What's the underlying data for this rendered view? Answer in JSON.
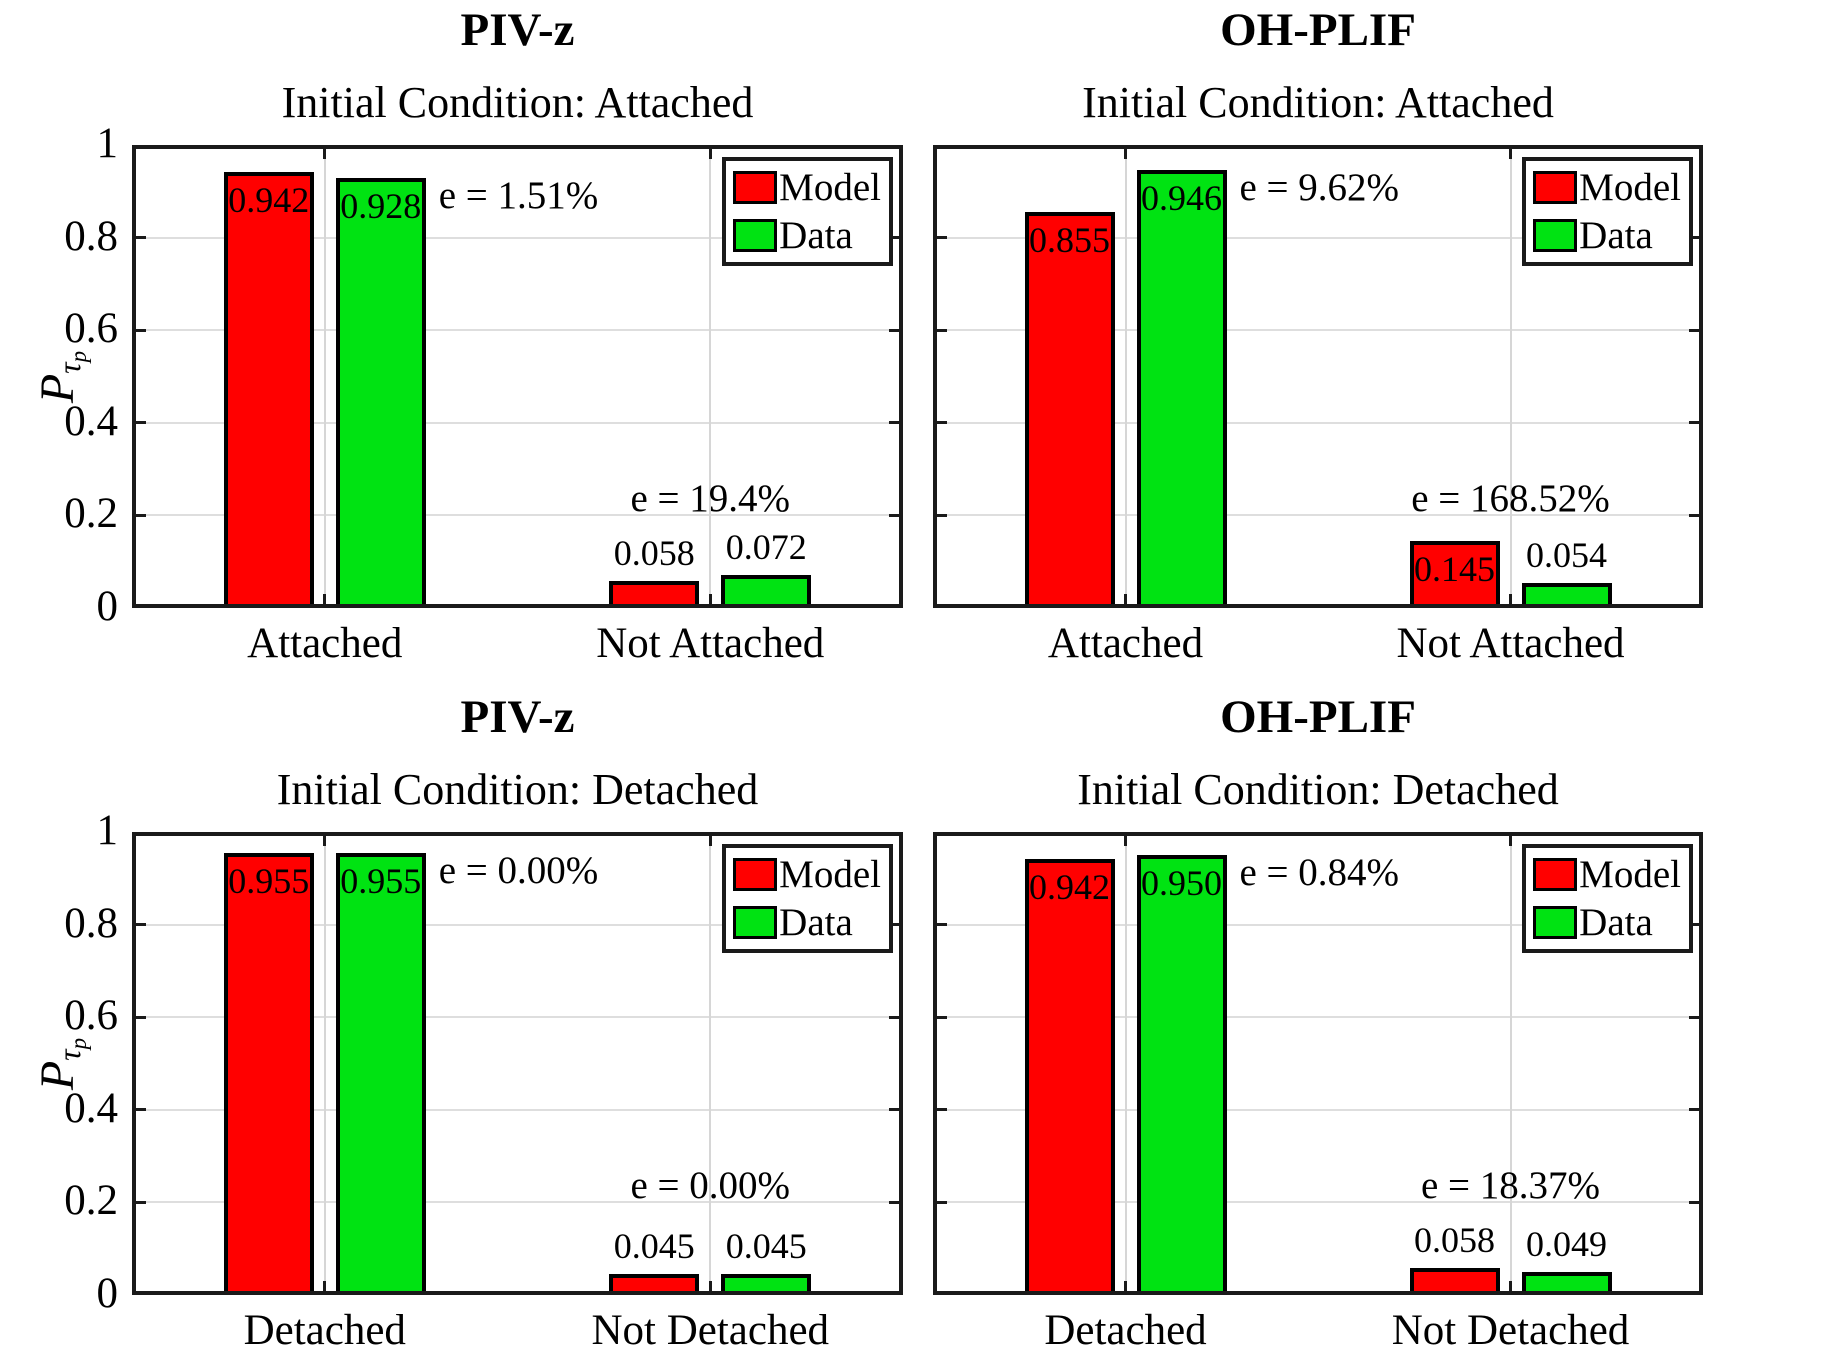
{
  "figure": {
    "background": "#ffffff"
  },
  "colors": {
    "model": "#ff0000",
    "data": "#00e312",
    "bar_edge": "#000000",
    "grid": "#dedede",
    "axis": "#1a1a1a",
    "text": "#000000"
  },
  "ylabel": {
    "main": "P",
    "sub": "τ",
    "subsub": "p"
  },
  "legend": {
    "position": "top-right",
    "items": [
      {
        "label": "Model",
        "color": "#ff0000"
      },
      {
        "label": "Data",
        "color": "#00e312"
      }
    ]
  },
  "chart_data": [
    {
      "type": "bar",
      "suptitle": "PIV-z",
      "title": "Initial Condition: Attached",
      "categories": [
        "Attached",
        "Not Attached"
      ],
      "series": [
        {
          "name": "Model",
          "color": "#ff0000",
          "values": [
            0.942,
            0.058
          ],
          "labels": [
            "0.942",
            "0.058"
          ]
        },
        {
          "name": "Data",
          "color": "#00e312",
          "values": [
            0.928,
            0.072
          ],
          "labels": [
            "0.928",
            "0.072"
          ]
        }
      ],
      "errors": [
        "e = 1.51%",
        "e = 19.4%"
      ],
      "ylim": [
        0,
        1
      ],
      "yticks": [
        0,
        0.2,
        0.4,
        0.6,
        0.8,
        1
      ],
      "ytick_labels": [
        "0",
        "0.2",
        "0.4",
        "0.6",
        "0.8",
        "1"
      ],
      "grid": true,
      "show_y_axis": true
    },
    {
      "type": "bar",
      "suptitle": "OH-PLIF",
      "title": "Initial Condition: Attached",
      "categories": [
        "Attached",
        "Not Attached"
      ],
      "series": [
        {
          "name": "Model",
          "color": "#ff0000",
          "values": [
            0.855,
            0.145
          ],
          "labels": [
            "0.855",
            "0.145"
          ]
        },
        {
          "name": "Data",
          "color": "#00e312",
          "values": [
            0.946,
            0.054
          ],
          "labels": [
            "0.946",
            "0.054"
          ]
        }
      ],
      "errors": [
        "e = 9.62%",
        "e = 168.52%"
      ],
      "ylim": [
        0,
        1
      ],
      "yticks": [
        0,
        0.2,
        0.4,
        0.6,
        0.8,
        1
      ],
      "ytick_labels": [
        "0",
        "0.2",
        "0.4",
        "0.6",
        "0.8",
        "1"
      ],
      "grid": true,
      "show_y_axis": false
    },
    {
      "type": "bar",
      "suptitle": "PIV-z",
      "title": "Initial Condition: Detached",
      "categories": [
        "Detached",
        "Not Detached"
      ],
      "series": [
        {
          "name": "Model",
          "color": "#ff0000",
          "values": [
            0.955,
            0.045
          ],
          "labels": [
            "0.955",
            "0.045"
          ]
        },
        {
          "name": "Data",
          "color": "#00e312",
          "values": [
            0.955,
            0.045
          ],
          "labels": [
            "0.955",
            "0.045"
          ]
        }
      ],
      "errors": [
        "e = 0.00%",
        "e = 0.00%"
      ],
      "ylim": [
        0,
        1
      ],
      "yticks": [
        0,
        0.2,
        0.4,
        0.6,
        0.8,
        1
      ],
      "ytick_labels": [
        "0",
        "0.2",
        "0.4",
        "0.6",
        "0.8",
        "1"
      ],
      "grid": true,
      "show_y_axis": true
    },
    {
      "type": "bar",
      "suptitle": "OH-PLIF",
      "title": "Initial Condition: Detached",
      "categories": [
        "Detached",
        "Not Detached"
      ],
      "series": [
        {
          "name": "Model",
          "color": "#ff0000",
          "values": [
            0.942,
            0.058
          ],
          "labels": [
            "0.942",
            "0.058"
          ]
        },
        {
          "name": "Data",
          "color": "#00e312",
          "values": [
            0.95,
            0.049
          ],
          "labels": [
            "0.950",
            "0.049"
          ]
        }
      ],
      "errors": [
        "e = 0.84%",
        "e = 18.37%"
      ],
      "ylim": [
        0,
        1
      ],
      "yticks": [
        0,
        0.2,
        0.4,
        0.6,
        0.8,
        1
      ],
      "ytick_labels": [
        "0",
        "0.2",
        "0.4",
        "0.6",
        "0.8",
        "1"
      ],
      "grid": true,
      "show_y_axis": false
    }
  ]
}
